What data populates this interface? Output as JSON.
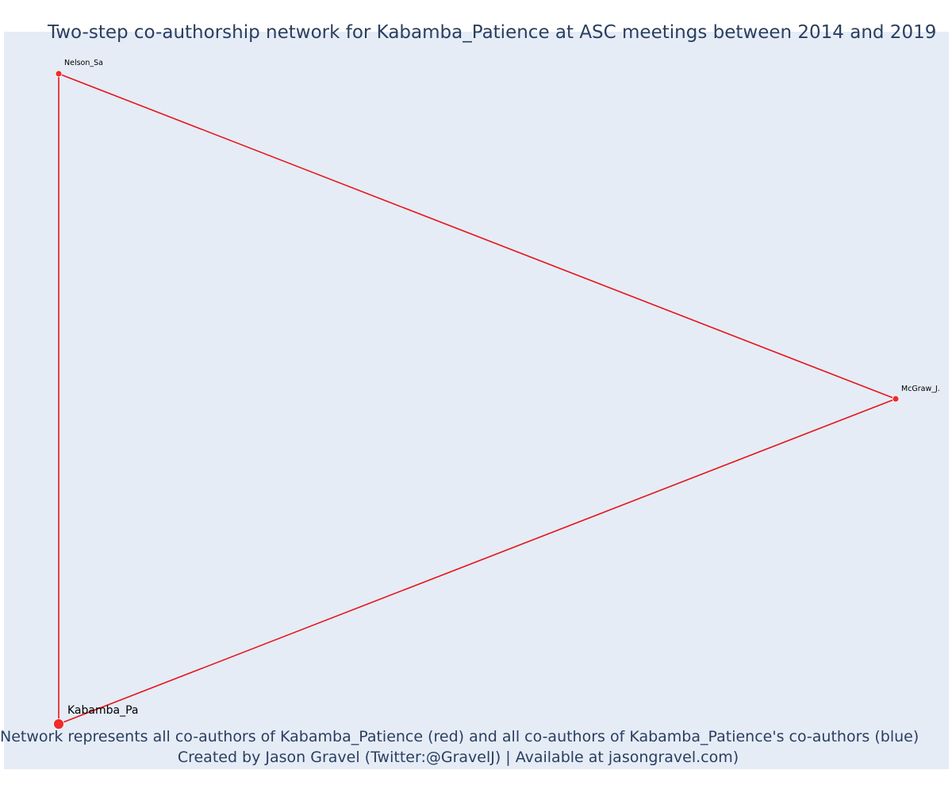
{
  "title": "Two-step co-authorship network for Kabamba_Patience at ASC meetings between 2014 and 2019",
  "caption_line1": "Network represents all co-authors of Kabamba_Patience (red) and all co-authors of Kabamba_Patience's co-authors (blue)",
  "caption_line2": "Created by Jason Gravel (Twitter:@GravelJ) | Available at jasongravel.com)",
  "colors": {
    "background": "#e5ecf6",
    "edge": "#e8141a",
    "node": "#ef2b2b",
    "title": "#2a3f5f"
  },
  "nodes": [
    {
      "id": "kabamba",
      "label": "Kabamba_Pa",
      "role": "focal"
    },
    {
      "id": "nelson",
      "label": "Nelson_Sa",
      "role": "co-author"
    },
    {
      "id": "mcgraw",
      "label": "McGraw_J.",
      "role": "co-author"
    }
  ],
  "edges": [
    {
      "source": "kabamba",
      "target": "nelson"
    },
    {
      "source": "kabamba",
      "target": "mcgraw"
    },
    {
      "source": "nelson",
      "target": "mcgraw"
    }
  ]
}
